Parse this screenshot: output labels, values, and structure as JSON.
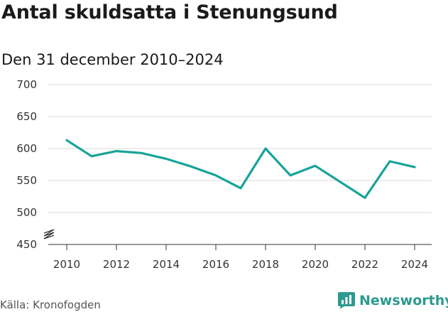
{
  "title": "Antal skuldsatta i Stenungsund",
  "subtitle": "Den 31 december 2010–2024",
  "source": "Källa: Kronofogden",
  "brand": {
    "name": "Newsworthy",
    "icon": "newsworthy-chart-icon",
    "color": "#2c9a8f"
  },
  "chart_data": {
    "type": "line",
    "title": "Antal skuldsatta i Stenungsund",
    "subtitle": "Den 31 december 2010–2024",
    "xlabel": "",
    "ylabel": "",
    "x": [
      2010,
      2011,
      2012,
      2013,
      2014,
      2015,
      2016,
      2017,
      2018,
      2019,
      2020,
      2021,
      2022,
      2023,
      2024
    ],
    "series": [
      {
        "name": "Antal skuldsatta",
        "color": "#17a398",
        "values": [
          613,
          588,
          596,
          593,
          584,
          572,
          558,
          538,
          600,
          558,
          573,
          548,
          523,
          580,
          571
        ]
      }
    ],
    "ylim": [
      450,
      700
    ],
    "y_axis_break": true,
    "yticks": [
      450,
      500,
      550,
      600,
      650,
      700
    ],
    "xticks": [
      2010,
      2012,
      2014,
      2016,
      2018,
      2020,
      2022,
      2024
    ],
    "grid": true
  }
}
